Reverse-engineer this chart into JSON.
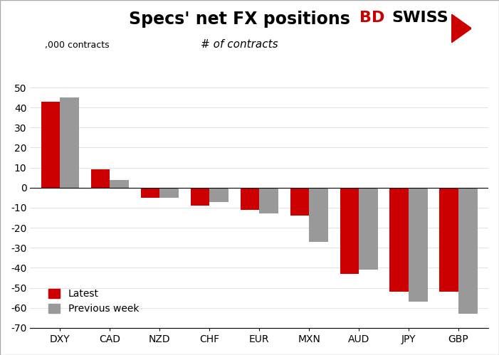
{
  "title": "Specs' net FX positions",
  "subtitle": "# of contracts",
  "ylabel": ",000 contracts",
  "categories": [
    "DXY",
    "CAD",
    "NZD",
    "CHF",
    "EUR",
    "MXN",
    "AUD",
    "JPY",
    "GBP"
  ],
  "latest": [
    43,
    9,
    -5,
    -9,
    -11,
    -14,
    -43,
    -52,
    -52
  ],
  "previous_week": [
    45,
    4,
    -5,
    -7,
    -13,
    -27,
    -41,
    -57,
    -63
  ],
  "latest_color": "#cc0000",
  "previous_color": "#999999",
  "ylim": [
    -70,
    60
  ],
  "yticks": [
    -70,
    -60,
    -50,
    -40,
    -30,
    -20,
    -10,
    0,
    10,
    20,
    30,
    40,
    50
  ],
  "bg_color": "#ffffff",
  "bar_width": 0.38,
  "title_fontsize": 17,
  "subtitle_fontsize": 11,
  "axis_fontsize": 10,
  "legend_fontsize": 10
}
